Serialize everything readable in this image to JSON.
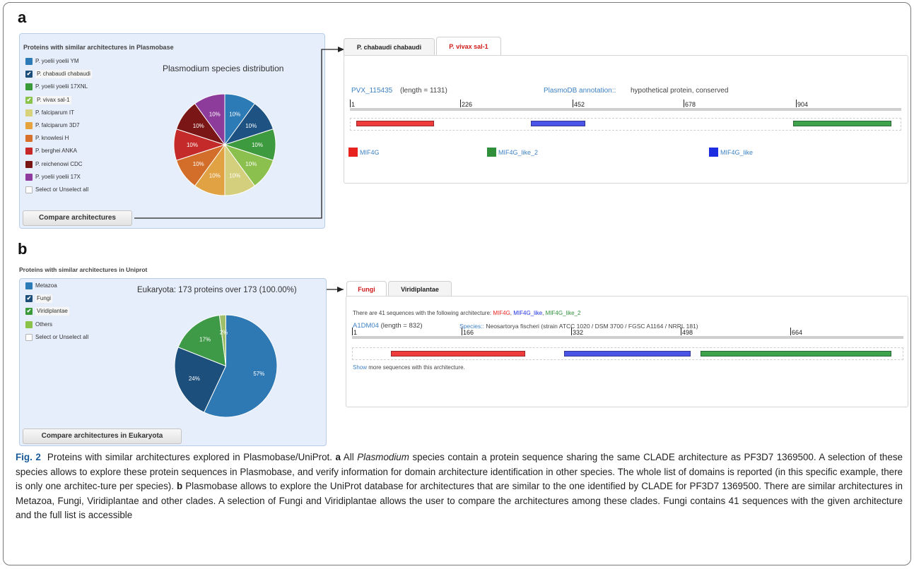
{
  "panel_a": {
    "letter": "a",
    "left_title": "Proteins with similar architectures in Plasmobase",
    "pie_title": "Plasmodium species distribution",
    "species": [
      {
        "label": "P. yoelii yoelii YM",
        "color": "#2c7bb6",
        "checked": false
      },
      {
        "label": "P. chabaudi chabaudi",
        "color": "#1d4e7a",
        "checked": true
      },
      {
        "label": "P. yoelii yoelii 17XNL",
        "color": "#3a9a3a",
        "checked": false
      },
      {
        "label": "P. vivax sal-1",
        "color": "#8bc34a",
        "checked": true
      },
      {
        "label": "P. falciparum IT",
        "color": "#d8d27a",
        "checked": false
      },
      {
        "label": "P. falciparum 3D7",
        "color": "#e6a23c",
        "checked": false
      },
      {
        "label": "P. knowlesi H",
        "color": "#d6702a",
        "checked": false
      },
      {
        "label": "P. berghei ANKA",
        "color": "#c62828",
        "checked": false
      },
      {
        "label": "P. reichenowi CDC",
        "color": "#7a1515",
        "checked": false
      },
      {
        "label": "P. yoelii yoelii 17X",
        "color": "#8e3a9e",
        "checked": false
      }
    ],
    "select_all_label": "Select or Unselect all",
    "compare_button": "Compare architectures",
    "pie_slices": [
      {
        "value": 10,
        "label": "10%",
        "color": "#2c7bb6"
      },
      {
        "value": 10,
        "label": "10%",
        "color": "#1d5283"
      },
      {
        "value": 10,
        "label": "10%",
        "color": "#3e9a3e"
      },
      {
        "value": 10,
        "label": "10%",
        "color": "#8cc04e"
      },
      {
        "value": 10,
        "label": "10%",
        "color": "#d4cf7c"
      },
      {
        "value": 10,
        "label": "10%",
        "color": "#e0a243"
      },
      {
        "value": 10,
        "label": "10%",
        "color": "#d36e2a"
      },
      {
        "value": 10,
        "label": "10%",
        "color": "#c42a2a"
      },
      {
        "value": 10,
        "label": "10%",
        "color": "#7a1616"
      },
      {
        "value": 10,
        "label": "10%",
        "color": "#8e3c9c"
      }
    ],
    "tabs": [
      "P. chabaudi chabaudi",
      "P. vivax sal-1"
    ],
    "protein_id": "PVX_115435",
    "length_text": "(length = 1131)",
    "annotation_label": "PlasmoDB annotation::",
    "annotation_text": "hypothetical protein, conserved",
    "ruler_ticks": [
      "1",
      "226",
      "452",
      "678",
      "904"
    ],
    "domains": [
      {
        "name": "MIF4G",
        "color": "#ee3b3b",
        "legend_color": "#e8231f"
      },
      {
        "name": "MIF4G_like_2",
        "color": "#3fa34d",
        "legend_color": "#2f8f3a"
      },
      {
        "name": "MIF4G_like",
        "color": "#4a55e8",
        "legend_color": "#1d2ee0"
      }
    ]
  },
  "panel_b": {
    "letter": "b",
    "title": "Proteins with similar architectures in Uniprot",
    "clades": [
      {
        "label": "Metazoa",
        "color": "#2c7bb6",
        "checked": false
      },
      {
        "label": "Fungi",
        "color": "#1d4e7a",
        "checked": true
      },
      {
        "label": "Viridiplantae",
        "color": "#3a9a3a",
        "checked": true
      },
      {
        "label": "Others",
        "color": "#8bc34a",
        "checked": false
      }
    ],
    "select_all_label": "Select or Unselect all",
    "pie_title": "Eukaryota: 173 proteins over 173 (100.00%)",
    "pie_slices": [
      {
        "value": 57,
        "label": "57%",
        "color": "#2e78b4"
      },
      {
        "value": 24,
        "label": "24%",
        "color": "#1c4f7c"
      },
      {
        "value": 17,
        "label": "17%",
        "color": "#3f9a47"
      },
      {
        "value": 2,
        "label": "2%",
        "color": "#9fbf6a"
      }
    ],
    "compare_button": "Compare architectures in Eukaryota",
    "tabs": [
      "Fungi",
      "Viridiplantae"
    ],
    "intro_text": "There are 41 sequences with the following architecture:",
    "arch_domains": [
      {
        "name": "MIF4G",
        "color": "#e8231f"
      },
      {
        "name": "MIF4G_like",
        "color": "#1d2ee0"
      },
      {
        "name": "MIF4G_like_2",
        "color": "#2f8f3a"
      }
    ],
    "protein_id": "A1DM04",
    "length_text": "(length = 832)",
    "species_label": "Species::",
    "species_text": "Neosartorya fischeri (strain ATCC 1020 / DSM 3700 / FGSC A1164 / NRRL 181)",
    "ruler_ticks": [
      "1",
      "166",
      "332",
      "498",
      "664"
    ],
    "domain_colors": [
      "#ee3b3b",
      "#4a55e8",
      "#3fa34d"
    ],
    "show_link": "Show",
    "show_rest": "more sequences with this architecture."
  },
  "caption": {
    "fig": "Fig. 2",
    "title": "Proteins with similar architectures explored in Plasmobase/UniProt.",
    "a_letter": "a",
    "a_text_1": "All",
    "a_italic": "Plasmodium",
    "a_text_2": "species contain a protein sequence sharing the same CLADE architecture as PF3D7 1369500. A selection of these species allows to explore these protein sequences in Plasmobase, and verify information for domain architecture identification in other species. The whole list of domains is reported (in this specific example, there is only one architec-ture per species).",
    "b_letter": "b",
    "b_text": "Plasmobase allows to explore the UniProt database for architectures that are similar to the one identified by CLADE for PF3D7 1369500. There are similar architectures in Metazoa, Fungi, Viridiplantae and other clades. A selection of Fungi and Viridiplantae allows the user to compare the architectures among these clades. Fungi contains 41 sequences with the given architecture and the full list is accessible"
  }
}
